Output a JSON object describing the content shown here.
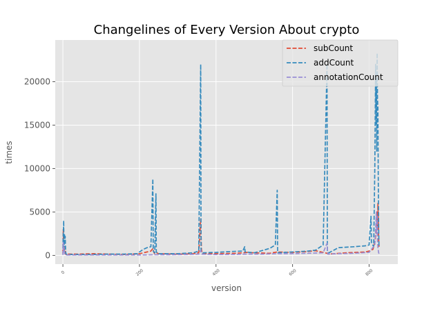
{
  "chart_data": {
    "type": "line",
    "title": "Changelines of Every Version About crypto",
    "xlabel": "version",
    "ylabel": "times",
    "xlim": [
      -20,
      875
    ],
    "ylim": [
      -1000,
      24800
    ],
    "xticks": [
      0,
      200,
      400,
      600,
      800
    ],
    "yticks": [
      0,
      5000,
      10000,
      15000,
      20000
    ],
    "grid": true,
    "legend_position": "top-right",
    "series": [
      {
        "name": "subCount",
        "color": "#e24a33",
        "points": [
          [
            0,
            200
          ],
          [
            1,
            3000
          ],
          [
            2,
            500
          ],
          [
            3,
            1500
          ],
          [
            4,
            300
          ],
          [
            5,
            200
          ],
          [
            6,
            600
          ],
          [
            7,
            300
          ],
          [
            8,
            100
          ],
          [
            12,
            150
          ],
          [
            40,
            150
          ],
          [
            80,
            200
          ],
          [
            120,
            150
          ],
          [
            160,
            100
          ],
          [
            200,
            200
          ],
          [
            215,
            350
          ],
          [
            230,
            500
          ],
          [
            235,
            800
          ],
          [
            238,
            300
          ],
          [
            240,
            200
          ],
          [
            245,
            300
          ],
          [
            250,
            200
          ],
          [
            300,
            150
          ],
          [
            340,
            200
          ],
          [
            355,
            300
          ],
          [
            360,
            4200
          ],
          [
            362,
            600
          ],
          [
            365,
            200
          ],
          [
            400,
            200
          ],
          [
            450,
            250
          ],
          [
            470,
            300
          ],
          [
            480,
            350
          ],
          [
            500,
            300
          ],
          [
            540,
            250
          ],
          [
            560,
            400
          ],
          [
            600,
            350
          ],
          [
            640,
            450
          ],
          [
            660,
            550
          ],
          [
            690,
            250
          ],
          [
            695,
            150
          ],
          [
            740,
            300
          ],
          [
            790,
            400
          ],
          [
            800,
            500
          ],
          [
            810,
            700
          ],
          [
            815,
            1500
          ],
          [
            818,
            2500
          ],
          [
            820,
            5000
          ],
          [
            822,
            3000
          ],
          [
            823,
            6000
          ],
          [
            824,
            4000
          ],
          [
            825,
            2000
          ],
          [
            826,
            1000
          ]
        ]
      },
      {
        "name": "addCount",
        "color": "#348abd",
        "points": [
          [
            0,
            800
          ],
          [
            2,
            4000
          ],
          [
            3,
            500
          ],
          [
            4,
            2500
          ],
          [
            5,
            1500
          ],
          [
            6,
            2200
          ],
          [
            7,
            500
          ],
          [
            8,
            200
          ],
          [
            10,
            100
          ],
          [
            40,
            100
          ],
          [
            80,
            100
          ],
          [
            120,
            150
          ],
          [
            160,
            150
          ],
          [
            195,
            200
          ],
          [
            200,
            400
          ],
          [
            210,
            700
          ],
          [
            220,
            900
          ],
          [
            230,
            1000
          ],
          [
            235,
            8800
          ],
          [
            236,
            500
          ],
          [
            240,
            300
          ],
          [
            243,
            7100
          ],
          [
            244,
            400
          ],
          [
            250,
            200
          ],
          [
            300,
            200
          ],
          [
            340,
            300
          ],
          [
            355,
            500
          ],
          [
            360,
            22000
          ],
          [
            361,
            500
          ],
          [
            365,
            300
          ],
          [
            400,
            350
          ],
          [
            440,
            450
          ],
          [
            470,
            500
          ],
          [
            475,
            1000
          ],
          [
            476,
            400
          ],
          [
            500,
            300
          ],
          [
            540,
            800
          ],
          [
            555,
            1200
          ],
          [
            560,
            7500
          ],
          [
            561,
            300
          ],
          [
            600,
            400
          ],
          [
            640,
            500
          ],
          [
            660,
            600
          ],
          [
            680,
            1200
          ],
          [
            690,
            22000
          ],
          [
            691,
            500
          ],
          [
            695,
            300
          ],
          [
            720,
            900
          ],
          [
            760,
            1000
          ],
          [
            790,
            1100
          ],
          [
            800,
            1200
          ],
          [
            805,
            4500
          ],
          [
            806,
            1500
          ],
          [
            812,
            1000
          ],
          [
            815,
            10000
          ],
          [
            817,
            22000
          ],
          [
            818,
            15000
          ],
          [
            819,
            20000
          ],
          [
            820,
            12000
          ],
          [
            821,
            23300
          ],
          [
            822,
            18000
          ],
          [
            823,
            17000
          ],
          [
            824,
            9000
          ],
          [
            825,
            3000
          ],
          [
            826,
            1000
          ]
        ]
      },
      {
        "name": "annotationCount",
        "color": "#988ed5",
        "points": [
          [
            0,
            50
          ],
          [
            1,
            1500
          ],
          [
            2,
            400
          ],
          [
            3,
            900
          ],
          [
            4,
            300
          ],
          [
            5,
            100
          ],
          [
            8,
            50
          ],
          [
            40,
            50
          ],
          [
            80,
            50
          ],
          [
            120,
            50
          ],
          [
            160,
            50
          ],
          [
            200,
            50
          ],
          [
            240,
            80
          ],
          [
            280,
            80
          ],
          [
            320,
            100
          ],
          [
            355,
            150
          ],
          [
            360,
            600
          ],
          [
            362,
            150
          ],
          [
            400,
            100
          ],
          [
            450,
            120
          ],
          [
            480,
            150
          ],
          [
            520,
            150
          ],
          [
            560,
            200
          ],
          [
            600,
            200
          ],
          [
            640,
            250
          ],
          [
            680,
            300
          ],
          [
            690,
            1400
          ],
          [
            692,
            150
          ],
          [
            720,
            200
          ],
          [
            760,
            250
          ],
          [
            800,
            350
          ],
          [
            815,
            1200
          ],
          [
            817,
            3000
          ],
          [
            819,
            5000
          ],
          [
            820,
            2500
          ],
          [
            821,
            4500
          ],
          [
            822,
            1500
          ],
          [
            823,
            1000
          ],
          [
            824,
            600
          ],
          [
            825,
            300
          ],
          [
            826,
            200
          ]
        ]
      }
    ]
  }
}
